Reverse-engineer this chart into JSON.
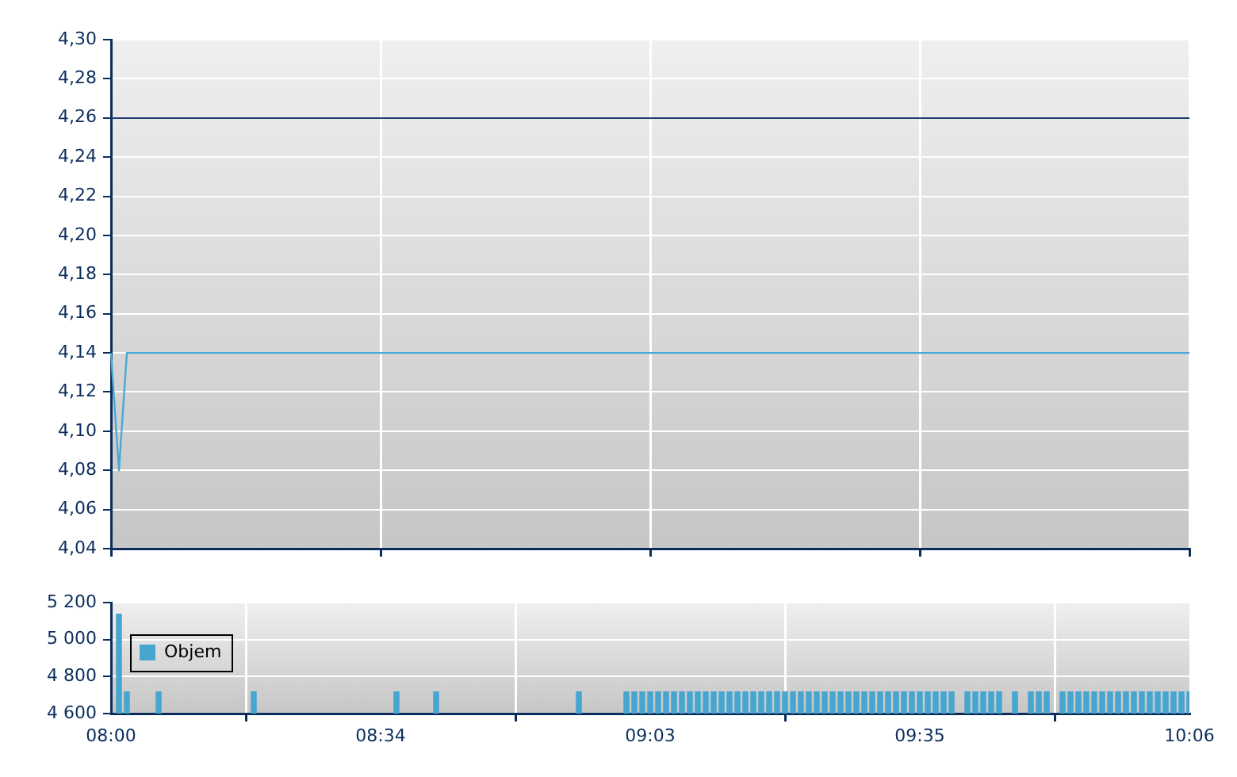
{
  "chart_data": [
    {
      "type": "line",
      "categories": [
        null,
        null,
        null,
        null,
        null,
        null,
        null,
        null,
        null,
        null,
        null,
        null,
        null,
        null,
        null,
        null,
        null,
        null,
        null,
        null,
        null,
        null,
        null,
        null,
        null,
        null,
        null,
        null,
        null,
        null,
        null,
        null,
        null,
        null,
        null,
        null,
        null,
        null,
        null,
        null,
        null,
        null,
        null,
        null,
        null,
        null,
        null,
        null,
        null,
        null,
        null,
        null,
        null,
        null,
        null,
        null,
        null,
        null,
        null,
        null,
        null,
        null,
        null,
        null,
        null,
        null,
        null,
        null,
        null,
        null,
        null,
        null,
        null,
        null,
        null,
        null,
        null,
        null,
        null,
        null,
        null,
        null,
        null,
        null,
        null,
        null,
        null,
        null,
        null,
        null,
        null,
        null,
        null,
        null,
        null,
        null,
        null,
        null,
        null,
        null,
        null,
        null,
        null,
        null,
        null,
        null,
        null,
        null,
        null,
        null,
        null,
        null,
        null,
        null,
        null,
        null,
        null,
        null,
        null,
        null,
        null,
        null,
        null,
        null,
        null,
        null,
        null,
        null,
        null,
        null,
        null,
        null,
        null,
        null,
        null,
        null,
        null
      ],
      "series": [
        {
          "color": "#4aa8d4",
          "values": [
            4.14,
            4.08,
            4.14,
            4.14,
            4.14,
            4.14,
            4.14,
            4.14,
            4.14,
            4.14,
            4.14,
            4.14,
            4.14,
            4.14,
            4.14,
            4.14,
            4.14,
            4.14,
            4.14,
            4.14,
            4.14,
            4.14,
            4.14,
            4.14,
            4.14,
            4.14,
            4.14,
            4.14,
            4.14,
            4.14,
            4.14,
            4.14,
            4.14,
            4.14,
            4.14,
            4.14,
            4.14,
            4.14,
            4.14,
            4.14,
            4.14,
            4.14,
            4.14,
            4.14,
            4.14,
            4.14,
            4.14,
            4.14,
            4.14,
            4.14,
            4.14,
            4.14,
            4.14,
            4.14,
            4.14,
            4.14,
            4.14,
            4.14,
            4.14,
            4.14,
            4.14,
            4.14,
            4.14,
            4.14,
            4.14,
            4.14,
            4.14,
            4.14,
            4.14,
            4.14,
            4.14,
            4.14,
            4.14,
            4.14,
            4.14,
            4.14,
            4.14,
            4.14,
            4.14,
            4.14,
            4.14,
            4.14,
            4.14,
            4.14,
            4.14,
            4.14,
            4.14,
            4.14,
            4.14,
            4.14,
            4.14,
            4.14,
            4.14,
            4.14,
            4.14,
            4.14,
            4.14,
            4.14,
            4.14,
            4.14,
            4.14,
            4.14,
            4.14,
            4.14,
            4.14,
            4.14,
            4.14,
            4.14,
            4.14,
            4.14,
            4.14,
            4.14,
            4.14,
            4.14,
            4.14,
            4.14,
            4.14,
            4.14,
            4.14,
            4.14,
            4.14,
            4.14,
            4.14,
            4.14,
            4.14,
            4.14,
            4.14,
            4.14,
            4.14,
            4.14,
            4.14,
            4.14,
            4.14,
            4.14,
            4.14,
            4.14,
            4.14
          ]
        }
      ],
      "ylim": [
        4.04,
        4.3
      ],
      "yticks": [
        {
          "value": 4.04,
          "label": "4,04"
        },
        {
          "value": 4.06,
          "label": "4,06"
        },
        {
          "value": 4.08,
          "label": "4,08"
        },
        {
          "value": 4.1,
          "label": "4,10"
        },
        {
          "value": 4.12,
          "label": "4,12"
        },
        {
          "value": 4.14,
          "label": "4,14"
        },
        {
          "value": 4.16,
          "label": "4,16"
        },
        {
          "value": 4.18,
          "label": "4,18"
        },
        {
          "value": 4.2,
          "label": "4,20"
        },
        {
          "value": 4.22,
          "label": "4,22"
        },
        {
          "value": 4.24,
          "label": "4,24"
        },
        {
          "value": 4.26,
          "label": "4,26"
        },
        {
          "value": 4.28,
          "label": "4,28"
        },
        {
          "value": 4.3,
          "label": "4,30"
        }
      ],
      "ref_lines": [
        {
          "axis": "y",
          "value": 4.26,
          "color": "#1c3a6c"
        }
      ],
      "grid": true,
      "tick_labels": "y",
      "marker": "none"
    },
    {
      "type": "bar",
      "categories": [
        "08:00",
        null,
        null,
        null,
        null,
        null,
        null,
        null,
        null,
        null,
        null,
        null,
        null,
        null,
        null,
        null,
        null,
        null,
        null,
        null,
        null,
        null,
        null,
        null,
        null,
        null,
        null,
        null,
        null,
        null,
        null,
        null,
        null,
        null,
        "08:34",
        null,
        null,
        null,
        null,
        null,
        null,
        null,
        null,
        null,
        null,
        null,
        null,
        null,
        null,
        null,
        null,
        null,
        null,
        null,
        null,
        null,
        null,
        null,
        null,
        null,
        null,
        null,
        null,
        null,
        null,
        null,
        null,
        null,
        "09:03",
        null,
        null,
        null,
        null,
        null,
        null,
        null,
        null,
        null,
        null,
        null,
        null,
        null,
        null,
        null,
        null,
        null,
        null,
        null,
        null,
        null,
        null,
        null,
        null,
        null,
        null,
        null,
        null,
        null,
        null,
        null,
        null,
        null,
        "09:35",
        null,
        null,
        null,
        null,
        null,
        null,
        null,
        null,
        null,
        null,
        null,
        null,
        null,
        null,
        null,
        null,
        null,
        null,
        null,
        null,
        null,
        null,
        null,
        null,
        null,
        null,
        null,
        null,
        null,
        null,
        null,
        null,
        null,
        "10:06"
      ],
      "series": [
        {
          "name": "Objem",
          "color": "#46a6cf",
          "values": [
            null,
            5140,
            4720,
            null,
            null,
            null,
            4720,
            null,
            null,
            null,
            null,
            null,
            null,
            null,
            null,
            null,
            null,
            null,
            4720,
            null,
            null,
            null,
            null,
            null,
            null,
            null,
            null,
            null,
            null,
            null,
            null,
            null,
            null,
            null,
            null,
            null,
            4720,
            null,
            null,
            null,
            null,
            4720,
            null,
            null,
            null,
            null,
            null,
            null,
            null,
            null,
            null,
            null,
            null,
            null,
            null,
            null,
            null,
            null,
            null,
            4720,
            null,
            null,
            null,
            null,
            null,
            4720,
            4720,
            4720,
            4720,
            4720,
            4720,
            4720,
            4720,
            4720,
            4720,
            4720,
            4720,
            4720,
            4720,
            4720,
            4720,
            4720,
            4720,
            4720,
            4720,
            4720,
            4720,
            4720,
            4720,
            4720,
            4720,
            4720,
            4720,
            4720,
            4720,
            4720,
            4720,
            4720,
            4720,
            4720,
            4720,
            4720,
            4720,
            4720,
            4720,
            4720,
            4720,
            null,
            4720,
            4720,
            4720,
            4720,
            4720,
            null,
            4720,
            null,
            4720,
            4720,
            4720,
            null,
            4720,
            4720,
            4720,
            4720,
            4720,
            4720,
            4720,
            4720,
            4720,
            4720,
            4720,
            4720,
            4720,
            4720,
            4720,
            4720,
            4720
          ]
        }
      ],
      "ylim": [
        4600,
        5200
      ],
      "yticks": [
        {
          "value": 4600,
          "label": "4 600"
        },
        {
          "value": 4800,
          "label": "4 800"
        },
        {
          "value": 5000,
          "label": "5 000"
        },
        {
          "value": 5200,
          "label": "5 200"
        }
      ],
      "grid": true,
      "legend": "top left"
    }
  ]
}
